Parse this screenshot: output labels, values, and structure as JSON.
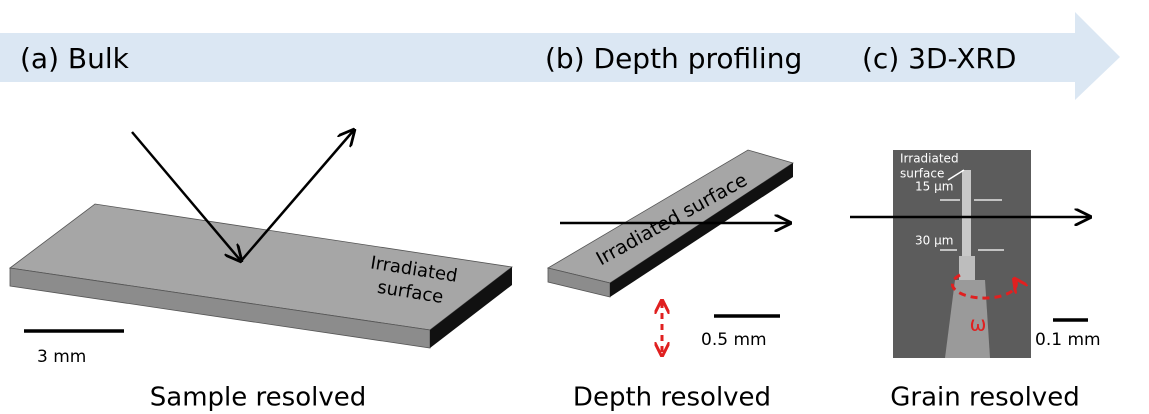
{
  "banner": {
    "labels": [
      "(a) Bulk",
      "(b) Depth profiling",
      "(c) 3D-XRD"
    ]
  },
  "panels": [
    {
      "surface_label": [
        "Irradiated",
        "surface"
      ],
      "scale": "3 mm",
      "caption": "Sample resolved"
    },
    {
      "surface_label": [
        "Irradiated surface"
      ],
      "scale": "0.5 mm",
      "caption": "Depth resolved"
    },
    {
      "surface_label": [
        "Irradiated",
        "surface"
      ],
      "widths": [
        "15 μm",
        "30 μm"
      ],
      "rotation": "ω",
      "scale": "0.1 mm",
      "caption": "Grain resolved"
    }
  ]
}
